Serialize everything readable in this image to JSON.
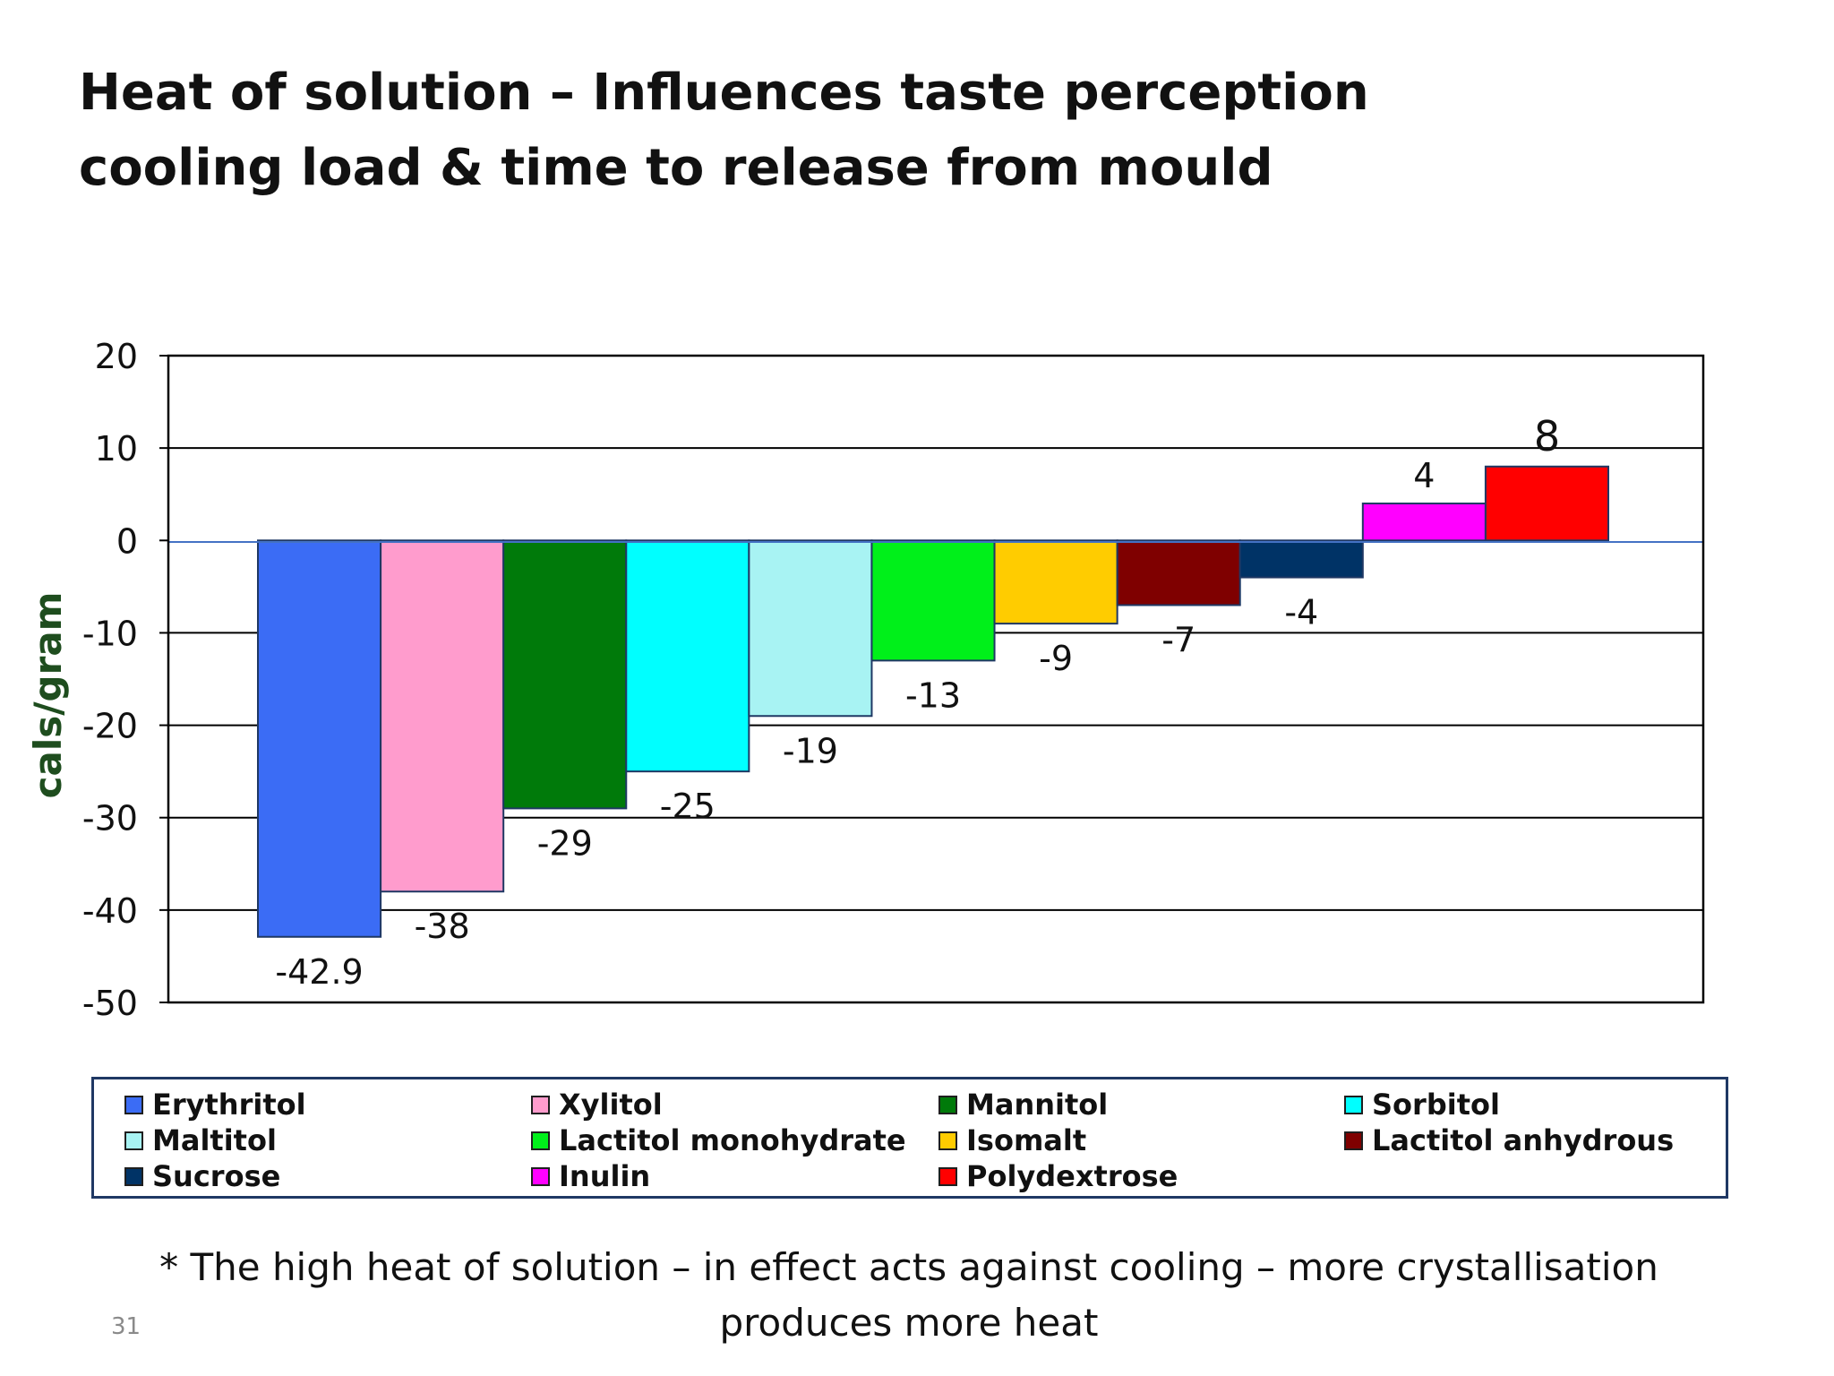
{
  "slide": {
    "title_line1": "Heat of solution – Influences taste perception",
    "title_line2": "cooling load & time to release from mould",
    "footnote_line1": "* The high heat of solution – in effect acts against cooling – more crystallisation",
    "footnote_line2": "produces more heat",
    "slide_number": "31"
  },
  "chart_data": {
    "type": "bar",
    "title": "",
    "xlabel": "",
    "ylabel": "cals/gram",
    "ylim": [
      -50,
      20
    ],
    "yticks": [
      20,
      10,
      0,
      -10,
      -20,
      -30,
      -40,
      -50
    ],
    "grid": true,
    "legend_position": "bottom",
    "series": [
      {
        "name": "Erythritol",
        "value": -42.9,
        "label": "-42.9",
        "color": "#3b6cf5"
      },
      {
        "name": "Xylitol",
        "value": -38,
        "label": "-38",
        "color": "#ff9ccd"
      },
      {
        "name": "Mannitol",
        "value": -29,
        "label": "-29",
        "color": "#007a0a"
      },
      {
        "name": "Sorbitol",
        "value": -25,
        "label": "-25",
        "color": "#00ffff"
      },
      {
        "name": "Maltitol",
        "value": -19,
        "label": "-19",
        "color": "#a8f3f3"
      },
      {
        "name": "Lactitol monohydrate",
        "value": -13,
        "label": "-13",
        "color": "#00f01a"
      },
      {
        "name": "Isomalt",
        "value": -9,
        "label": "-9",
        "color": "#ffcc00"
      },
      {
        "name": "Lactitol anhydrous",
        "value": -7,
        "label": "-7",
        "color": "#7f0000"
      },
      {
        "name": "Sucrose",
        "value": -4,
        "label": "-4",
        "color": "#003366"
      },
      {
        "name": "Inulin",
        "value": 4,
        "label": "4",
        "color": "#ff00ff"
      },
      {
        "name": "Polydextrose",
        "value": 8,
        "label": "8",
        "color": "#ff0000"
      }
    ]
  }
}
